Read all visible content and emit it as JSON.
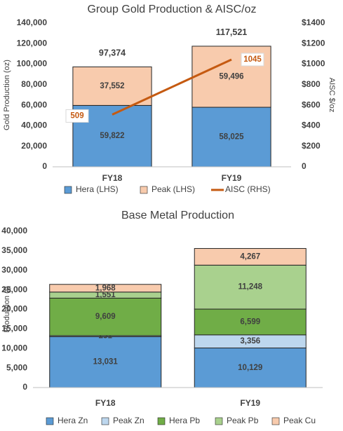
{
  "chart_data": [
    {
      "type": "bar",
      "stacked": true,
      "title": "Group Gold Production & AISC/oz",
      "y_label": "Gold Production (oz)",
      "y2_label": "AISC $/oz",
      "categories": [
        "FY18",
        "FY19"
      ],
      "series": [
        {
          "name": "Hera (LHS)",
          "color": "#5b9bd5",
          "values": [
            59822,
            58025
          ],
          "value_labels": [
            "59,822",
            "58,025"
          ]
        },
        {
          "name": "Peak (LHS)",
          "color": "#f8cbad",
          "values": [
            37552,
            59496
          ],
          "value_labels": [
            "37,552",
            "59,496"
          ]
        },
        {
          "name": "AISC (RHS)",
          "type": "line",
          "axis": "y2",
          "color": "#c55a11",
          "values": [
            509,
            1045
          ]
        }
      ],
      "totals": {
        "values": [
          97374,
          117521
        ],
        "value_labels": [
          "97,374",
          "117,521"
        ]
      },
      "ylim": [
        0,
        140000
      ],
      "yticks": [
        0,
        {
          "value": 20000,
          "label": "20,000"
        },
        {
          "value": 40000,
          "label": "40,000"
        },
        {
          "value": 60000,
          "label": "60,000"
        },
        {
          "value": 80000,
          "label": "80,000"
        },
        {
          "value": 100000,
          "label": "100,000"
        },
        {
          "value": 120000,
          "label": "120,000"
        },
        {
          "value": 140000,
          "label": "140,000"
        }
      ],
      "y2lim": [
        0,
        1400
      ],
      "y2ticks": [
        0,
        {
          "value": 200,
          "label": "$200"
        },
        {
          "value": 400,
          "label": "$400"
        },
        {
          "value": 600,
          "label": "$600"
        },
        {
          "value": 800,
          "label": "$800"
        },
        {
          "value": 1000,
          "label": "$1000"
        },
        {
          "value": 1200,
          "label": "$1200"
        },
        {
          "value": 1400,
          "label": "$1400"
        }
      ],
      "grid": false,
      "legend": "bottom"
    },
    {
      "type": "bar",
      "stacked": true,
      "title": "Base Metal Production",
      "y_label": "Production (t)",
      "categories": [
        "FY18",
        "FY19"
      ],
      "series": [
        {
          "name": "Hera Zn",
          "color": "#5b9bd5",
          "values": [
            13031,
            10129
          ],
          "value_labels": [
            "13,031",
            "10,129"
          ]
        },
        {
          "name": "Peak Zn",
          "color": "#bdd7ee",
          "values": [
            251,
            3356
          ],
          "value_labels": [
            "251",
            "3,356"
          ]
        },
        {
          "name": "Hera Pb",
          "color": "#70ad47",
          "values": [
            9609,
            6599
          ],
          "value_labels": [
            "9,609",
            "6,599"
          ]
        },
        {
          "name": "Peak Pb",
          "color": "#a9d18e",
          "values": [
            1551,
            11248
          ],
          "value_labels": [
            "1,551",
            "11,248"
          ]
        },
        {
          "name": "Peak Cu",
          "color": "#f8cbad",
          "values": [
            1968,
            4267
          ],
          "value_labels": [
            "1,968",
            "4,267"
          ]
        }
      ],
      "ylim": [
        0,
        40000
      ],
      "yticks": [
        0,
        {
          "value": 5000,
          "label": "5,000"
        },
        {
          "value": 10000,
          "label": "10,000"
        },
        {
          "value": 15000,
          "label": "15,000"
        },
        {
          "value": 20000,
          "label": "20,000"
        },
        {
          "value": 25000,
          "label": "25,000"
        },
        {
          "value": 30000,
          "label": "30,000"
        },
        {
          "value": 35000,
          "label": "35,000"
        },
        {
          "value": 40000,
          "label": "40,000"
        }
      ],
      "grid": false,
      "legend": "bottom"
    }
  ]
}
